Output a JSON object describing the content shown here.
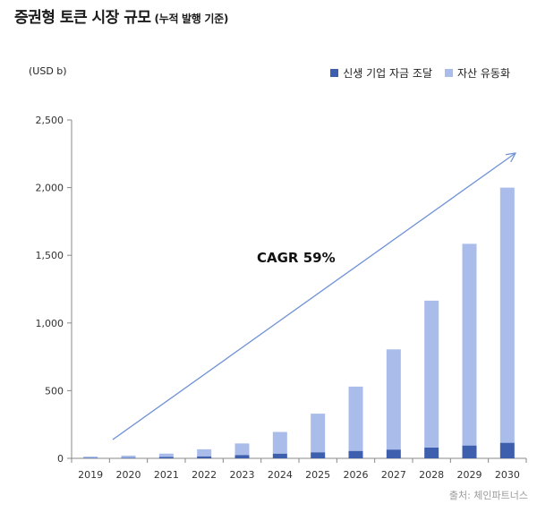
{
  "chart_data": {
    "type": "bar",
    "stacked": true,
    "title": "증권형 토큰 시장 규모",
    "subtitle": "(누적 발행 기준)",
    "ylabel": "(USD b)",
    "xlabel": "",
    "categories": [
      "2019",
      "2020",
      "2021",
      "2022",
      "2023",
      "2024",
      "2025",
      "2026",
      "2027",
      "2028",
      "2029",
      "2030"
    ],
    "series": [
      {
        "name": "신생 기업 자금 조달",
        "color": "#3d5fad",
        "values": [
          3,
          5,
          10,
          15,
          25,
          35,
          45,
          55,
          65,
          80,
          95,
          115
        ]
      },
      {
        "name": "자산 유동화",
        "color": "#a9bcea",
        "values": [
          10,
          15,
          25,
          52,
          85,
          160,
          285,
          475,
          740,
          1085,
          1490,
          1885
        ]
      }
    ],
    "ylim": [
      0,
      2500
    ],
    "yticks": [
      0,
      500,
      1000,
      1500,
      2000,
      2500
    ],
    "ytick_labels": [
      "0",
      "500",
      "1,000",
      "1,500",
      "2,000",
      "2,500"
    ],
    "annotation": "CAGR 59%",
    "source": "출처: 체인파트너스",
    "arrow_color": "#6f93d6"
  }
}
